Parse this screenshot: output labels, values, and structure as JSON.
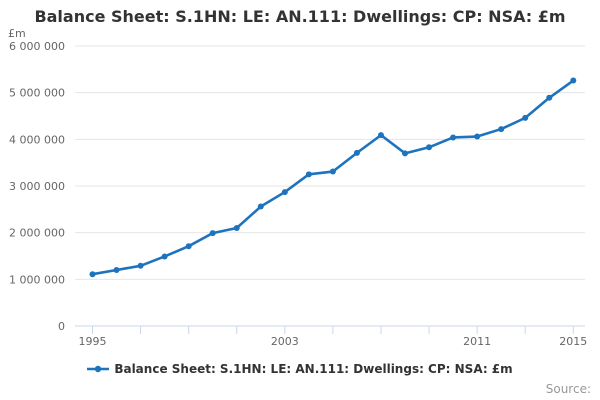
{
  "title": "Balance Sheet: S.1HN: LE: AN.111: Dwellings: CP: NSA: £m",
  "y_axis_unit": "£m",
  "legend": {
    "label": "Balance Sheet: S.1HN: LE: AN.111: Dwellings: CP: NSA: £m"
  },
  "source_label": "Source:",
  "colors": {
    "line": "#1e73be",
    "grid": "#e6e6e6",
    "axis": "#ccd6eb",
    "title_text": "#333333",
    "axis_label": "#666666",
    "legend_text": "#333333",
    "source_text": "#999999"
  },
  "chart_data": {
    "type": "line",
    "title": "Balance Sheet: S.1HN: LE: AN.111: Dwellings: CP: NSA: £m",
    "xlabel": "",
    "ylabel": "£m",
    "x": [
      1995,
      1996,
      1997,
      1998,
      1999,
      2000,
      2001,
      2002,
      2003,
      2004,
      2005,
      2006,
      2007,
      2008,
      2009,
      2010,
      2011,
      2012,
      2013,
      2014,
      2015
    ],
    "values": [
      1110000,
      1200000,
      1290000,
      1490000,
      1710000,
      1990000,
      2100000,
      2560000,
      2870000,
      3250000,
      3310000,
      3710000,
      4090000,
      3700000,
      3830000,
      4040000,
      4060000,
      4220000,
      4460000,
      4890000,
      5260000
    ],
    "ylim": [
      0,
      6000000
    ],
    "y_tick_step": 1000000,
    "y_tick_labels": [
      "0",
      "1 000 000",
      "2 000 000",
      "3 000 000",
      "4 000 000",
      "5 000 000",
      "6 000 000"
    ],
    "x_tick_step": 2,
    "x_labeled_ticks": [
      1995,
      2003,
      2011,
      2015
    ],
    "grid": "horizontal",
    "legend_position": "bottom-center",
    "markers": true
  }
}
